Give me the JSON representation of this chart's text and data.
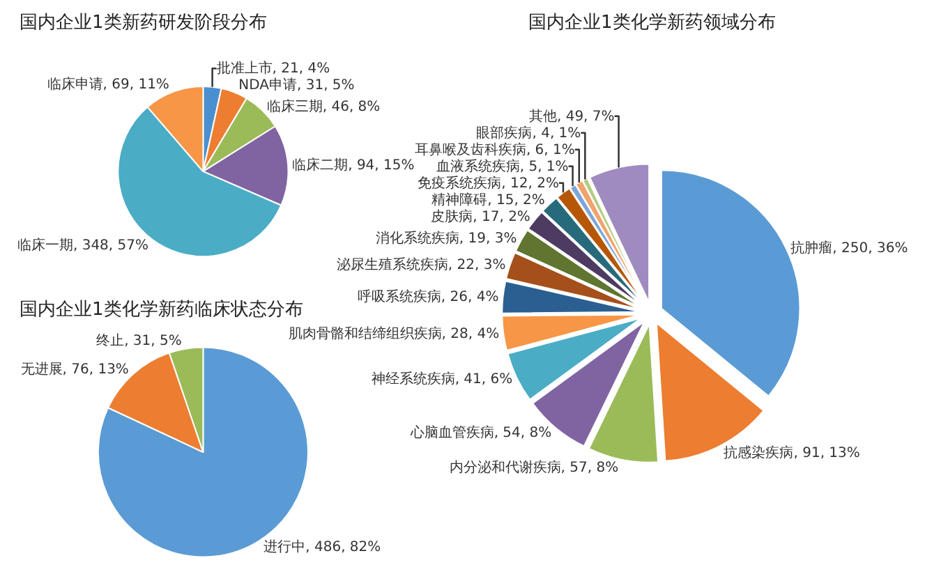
{
  "chart_data": [
    {
      "type": "pie",
      "title": "国内企业1类新药研发阶段分布",
      "categories": [
        "批准上市",
        "NDA申请",
        "临床三期",
        "临床二期",
        "临床一期",
        "临床申请"
      ],
      "values": [
        21,
        31,
        46,
        94,
        348,
        69
      ],
      "value_labels": [
        "21, 4%",
        "31, 5%",
        "46, 8%",
        "94, 15%",
        "348, 57%",
        "69, 11%"
      ],
      "colors": [
        "#4a90d0",
        "#ed7d31",
        "#9bbb59",
        "#8064a2",
        "#4bacc6",
        "#f79646"
      ]
    },
    {
      "type": "pie",
      "title": "国内企业1类化学新药领域分布",
      "categories": [
        "抗肿瘤",
        "抗感染疾病",
        "内分泌和代谢疾病",
        "心脑血管疾病",
        "神经系统疾病",
        "肌肉骨骼和结缔组织疾病",
        "呼吸系统疾病",
        "泌尿生殖系统疾病",
        "消化系统疾病",
        "皮肤病",
        "精神障碍",
        "免疫系统疾病",
        "血液系统疾病",
        "耳鼻喉及齿科疾病",
        "眼部疾病",
        "其他"
      ],
      "values": [
        250,
        91,
        57,
        54,
        41,
        28,
        26,
        22,
        19,
        17,
        15,
        12,
        5,
        6,
        4,
        49
      ],
      "value_labels": [
        "250, 36%",
        "91, 13%",
        "57, 8%",
        "54, 8%",
        "41, 6%",
        "28, 4%",
        "26, 4%",
        "22, 3%",
        "19, 3%",
        "17, 2%",
        "15, 2%",
        "12, 2%",
        "5, 1%",
        "6, 1%",
        "4, 1%",
        "49, 7%"
      ],
      "colors": [
        "#5b9bd5",
        "#ed7d31",
        "#9bbb59",
        "#8064a2",
        "#4bacc6",
        "#f79646",
        "#2c5f91",
        "#a5501a",
        "#5f7530",
        "#4d3b62",
        "#276a7c",
        "#b65708",
        "#7da6d8",
        "#f0a36a",
        "#b3cc82",
        "#9f8bbf"
      ]
    },
    {
      "type": "pie",
      "title": "国内企业1类化学新药临床状态分布",
      "categories": [
        "进行中",
        "无进展",
        "终止"
      ],
      "values": [
        486,
        76,
        31
      ],
      "value_labels": [
        "486, 82%",
        "76, 13%",
        "31, 5%"
      ],
      "colors": [
        "#5b9bd5",
        "#ed7d31",
        "#9bbb59"
      ]
    }
  ]
}
